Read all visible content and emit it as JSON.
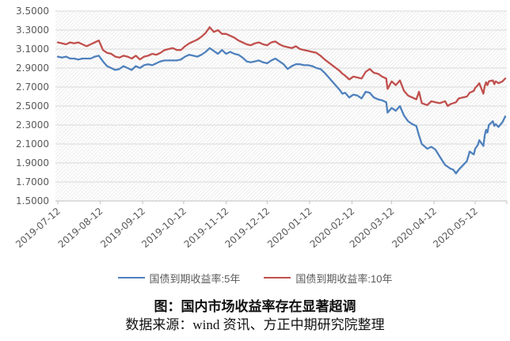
{
  "chart_data": {
    "type": "line",
    "title": "",
    "xlabel": "",
    "ylabel": "",
    "ylim": [
      1.5,
      3.5
    ],
    "grid": "horizontal",
    "plot_background": "diagonal-hatch",
    "legend_position": "bottom",
    "y_tick_labels": [
      "3.5000",
      "3.3000",
      "3.1000",
      "2.9000",
      "2.7000",
      "2.5000",
      "2.3000",
      "2.1000",
      "1.9000",
      "1.7000",
      "1.5000"
    ],
    "x_tick_labels": [
      "2019-07-12",
      "2019-08-12",
      "2019-09-12",
      "2019-10-12",
      "2019-11-12",
      "2019-12-12",
      "2020-01-12",
      "2020-02-12",
      "2020-03-12",
      "2020-04-12",
      "2020-05-12"
    ],
    "dates": [
      "2019-07-12",
      "2019-07-15",
      "2019-07-18",
      "2019-07-21",
      "2019-07-24",
      "2019-07-27",
      "2019-07-30",
      "2019-08-02",
      "2019-08-05",
      "2019-08-08",
      "2019-08-11",
      "2019-08-14",
      "2019-08-17",
      "2019-08-20",
      "2019-08-23",
      "2019-08-26",
      "2019-08-29",
      "2019-09-01",
      "2019-09-04",
      "2019-09-07",
      "2019-09-10",
      "2019-09-13",
      "2019-09-16",
      "2019-09-19",
      "2019-09-22",
      "2019-09-25",
      "2019-09-28",
      "2019-10-01",
      "2019-10-04",
      "2019-10-07",
      "2019-10-10",
      "2019-10-13",
      "2019-10-16",
      "2019-10-19",
      "2019-10-22",
      "2019-10-25",
      "2019-10-28",
      "2019-10-31",
      "2019-11-03",
      "2019-11-06",
      "2019-11-09",
      "2019-11-12",
      "2019-11-15",
      "2019-11-18",
      "2019-11-21",
      "2019-11-24",
      "2019-11-27",
      "2019-11-30",
      "2019-12-03",
      "2019-12-06",
      "2019-12-09",
      "2019-12-12",
      "2019-12-15",
      "2019-12-18",
      "2019-12-21",
      "2019-12-24",
      "2019-12-27",
      "2019-12-30",
      "2020-01-02",
      "2020-01-05",
      "2020-01-08",
      "2020-01-11",
      "2020-01-14",
      "2020-01-17",
      "2020-01-20",
      "2020-01-23",
      "2020-02-03",
      "2020-02-05",
      "2020-02-07",
      "2020-02-10",
      "2020-02-13",
      "2020-02-16",
      "2020-02-19",
      "2020-02-22",
      "2020-02-25",
      "2020-02-28",
      "2020-03-02",
      "2020-03-05",
      "2020-03-08",
      "2020-03-09",
      "2020-03-12",
      "2020-03-15",
      "2020-03-18",
      "2020-03-21",
      "2020-03-24",
      "2020-03-27",
      "2020-03-30",
      "2020-04-01",
      "2020-04-03",
      "2020-04-07",
      "2020-04-10",
      "2020-04-13",
      "2020-04-16",
      "2020-04-20",
      "2020-04-22",
      "2020-04-24",
      "2020-04-26",
      "2020-04-28",
      "2020-04-30",
      "2020-05-06",
      "2020-05-08",
      "2020-05-11",
      "2020-05-12",
      "2020-05-14",
      "2020-05-15",
      "2020-05-18",
      "2020-05-19",
      "2020-05-20",
      "2020-05-21",
      "2020-05-22",
      "2020-05-25",
      "2020-05-26",
      "2020-05-27",
      "2020-05-29",
      "2020-06-01",
      "2020-06-03"
    ],
    "series": [
      {
        "name": "国债到期收益率:5年",
        "color": "#4F81BD",
        "values": [
          3.02,
          3.01,
          3.02,
          3.0,
          3.0,
          2.99,
          3.0,
          3.0,
          3.0,
          3.02,
          3.03,
          2.97,
          2.92,
          2.9,
          2.88,
          2.89,
          2.92,
          2.9,
          2.88,
          2.92,
          2.9,
          2.93,
          2.94,
          2.93,
          2.95,
          2.97,
          2.98,
          2.98,
          2.98,
          2.98,
          2.99,
          3.02,
          3.04,
          3.03,
          3.02,
          3.04,
          3.07,
          3.11,
          3.08,
          3.05,
          3.09,
          3.05,
          3.07,
          3.05,
          3.04,
          3.01,
          2.97,
          2.96,
          2.97,
          2.98,
          2.96,
          2.95,
          2.98,
          3.0,
          2.97,
          2.94,
          2.89,
          2.92,
          2.94,
          2.94,
          2.93,
          2.93,
          2.92,
          2.9,
          2.89,
          2.85,
          2.67,
          2.63,
          2.64,
          2.59,
          2.62,
          2.61,
          2.58,
          2.65,
          2.64,
          2.59,
          2.57,
          2.56,
          2.54,
          2.43,
          2.48,
          2.45,
          2.5,
          2.4,
          2.34,
          2.31,
          2.29,
          2.19,
          2.1,
          2.05,
          2.07,
          2.04,
          1.97,
          1.88,
          1.86,
          1.84,
          1.83,
          1.79,
          1.83,
          1.92,
          2.02,
          1.99,
          2.05,
          2.09,
          2.14,
          2.08,
          2.19,
          2.25,
          2.22,
          2.3,
          2.34,
          2.29,
          2.31,
          2.28,
          2.33,
          2.39
        ]
      },
      {
        "name": "国债到期收益率:10年",
        "color": "#C0504D",
        "values": [
          3.17,
          3.16,
          3.15,
          3.17,
          3.16,
          3.17,
          3.15,
          3.13,
          3.15,
          3.17,
          3.19,
          3.09,
          3.06,
          3.05,
          3.02,
          3.01,
          3.03,
          3.02,
          3.0,
          3.03,
          2.99,
          3.02,
          3.03,
          3.05,
          3.04,
          3.06,
          3.09,
          3.1,
          3.11,
          3.09,
          3.09,
          3.13,
          3.16,
          3.18,
          3.2,
          3.23,
          3.27,
          3.33,
          3.28,
          3.3,
          3.26,
          3.26,
          3.24,
          3.22,
          3.19,
          3.17,
          3.15,
          3.14,
          3.16,
          3.17,
          3.15,
          3.14,
          3.17,
          3.18,
          3.15,
          3.13,
          3.12,
          3.11,
          3.13,
          3.1,
          3.09,
          3.08,
          3.07,
          3.06,
          3.03,
          2.99,
          2.87,
          2.84,
          2.82,
          2.78,
          2.81,
          2.8,
          2.79,
          2.86,
          2.89,
          2.85,
          2.84,
          2.81,
          2.79,
          2.68,
          2.76,
          2.72,
          2.77,
          2.66,
          2.61,
          2.59,
          2.57,
          2.65,
          2.53,
          2.51,
          2.55,
          2.54,
          2.53,
          2.55,
          2.5,
          2.52,
          2.53,
          2.54,
          2.58,
          2.6,
          2.64,
          2.66,
          2.69,
          2.72,
          2.74,
          2.63,
          2.71,
          2.75,
          2.72,
          2.76,
          2.77,
          2.73,
          2.76,
          2.74,
          2.76,
          2.79
        ]
      }
    ]
  },
  "legend": {
    "items": [
      {
        "label": "国债到期收益率:5年",
        "color": "#4F81BD"
      },
      {
        "label": "国债到期收益率:10年",
        "color": "#C0504D"
      }
    ]
  },
  "caption": {
    "title": "图：国内市场收益率存在显著超调",
    "source": "数据来源：wind 资讯、方正中期研究院整理"
  },
  "colors": {
    "axis_text": "#595959",
    "gridline": "#D9D9D9",
    "axis_line": "#BFBFBF",
    "hatch": "#E9E9E9",
    "series_5y": "#4F81BD",
    "series_10y": "#C0504D"
  }
}
